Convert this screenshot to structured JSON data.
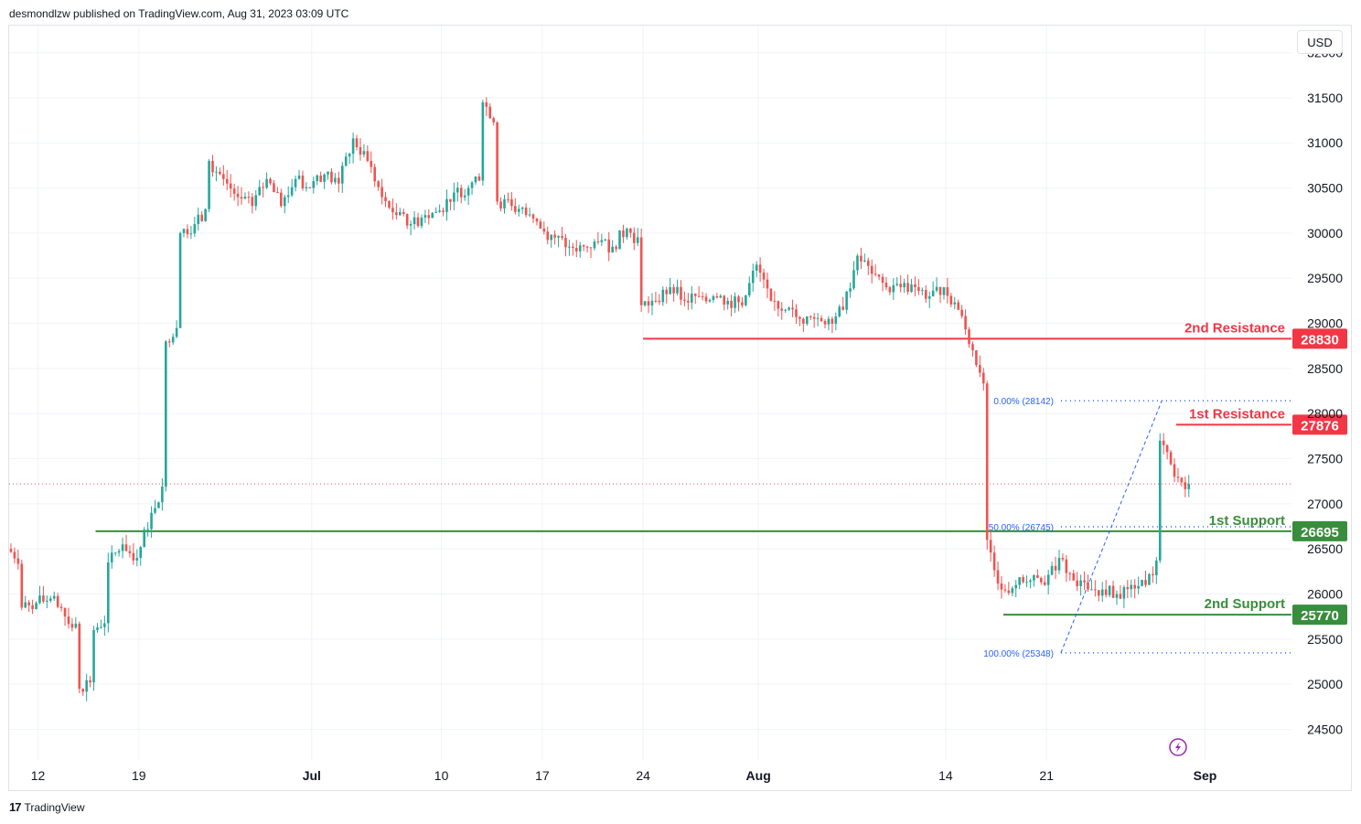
{
  "header": {
    "published": "desmondlzw published on TradingView.com, Aug 31, 2023 03:09 UTC"
  },
  "currency": "USD",
  "footer": {
    "brand": "TradingView"
  },
  "colors": {
    "up": "#26a69a",
    "down": "#ef5350",
    "resistance": "#f23645",
    "support": "#388e3c",
    "fib": "#2962ff",
    "grid": "#f0f3fa",
    "price_line": "#ef5350",
    "lightning": "#9c27b0"
  },
  "icons": {
    "lightning": "lightning-icon",
    "logo": "tradingview-logo-icon"
  },
  "chart_data": {
    "type": "candlestick",
    "title": "",
    "y_axis": {
      "ticks": [
        24500,
        25000,
        25500,
        26000,
        26500,
        27000,
        27500,
        28000,
        28500,
        29000,
        29500,
        30000,
        30500,
        31000,
        31500,
        32000
      ],
      "min": 24150,
      "max": 32300
    },
    "x_axis": {
      "labels": [
        {
          "label": "12",
          "date": "2023-06-12"
        },
        {
          "label": "19",
          "date": "2023-06-19"
        },
        {
          "label": "Jul",
          "date": "2023-07-01"
        },
        {
          "label": "10",
          "date": "2023-07-10"
        },
        {
          "label": "17",
          "date": "2023-07-17"
        },
        {
          "label": "24",
          "date": "2023-07-24"
        },
        {
          "label": "Aug",
          "date": "2023-08-01"
        },
        {
          "label": "14",
          "date": "2023-08-14"
        },
        {
          "label": "21",
          "date": "2023-08-21"
        },
        {
          "label": "Sep",
          "date": "2023-09-01"
        }
      ],
      "start": "2023-06-10",
      "end": "2023-09-07"
    },
    "last_price": 27220,
    "levels": [
      {
        "name": "2nd Resistance",
        "value": 28830,
        "kind": "resistance",
        "from": "2023-07-24"
      },
      {
        "name": "1st Resistance",
        "value": 27876,
        "kind": "resistance",
        "from": "2023-08-30"
      },
      {
        "name": "1st Support",
        "value": 26695,
        "kind": "support",
        "from": "2023-06-16"
      },
      {
        "name": "2nd Support",
        "value": 25770,
        "kind": "support",
        "from": "2023-08-18"
      }
    ],
    "fibonacci": [
      {
        "label": "0.00% (28142)",
        "value": 28142
      },
      {
        "label": "50.00% (26745)",
        "value": 26745
      },
      {
        "label": "100.00% (25348)",
        "value": 25348
      }
    ],
    "fib_trend": {
      "from_date": "2023-08-22",
      "from_value": 25348,
      "to_date": "2023-08-29",
      "to_value": 28142
    },
    "series": [
      {
        "date": "2023-06-10",
        "value": 26500
      },
      {
        "date": "2023-06-11",
        "value": 25850
      },
      {
        "date": "2023-06-12",
        "value": 25900
      },
      {
        "date": "2023-06-13",
        "value": 25950
      },
      {
        "date": "2023-06-14",
        "value": 25750
      },
      {
        "date": "2023-06-15",
        "value": 24950
      },
      {
        "date": "2023-06-16",
        "value": 25600
      },
      {
        "date": "2023-06-17",
        "value": 26350
      },
      {
        "date": "2023-06-18",
        "value": 26550
      },
      {
        "date": "2023-06-19",
        "value": 26400
      },
      {
        "date": "2023-06-20",
        "value": 26900
      },
      {
        "date": "2023-06-21",
        "value": 28800
      },
      {
        "date": "2023-06-22",
        "value": 30000
      },
      {
        "date": "2023-06-23",
        "value": 30100
      },
      {
        "date": "2023-06-24",
        "value": 30800
      },
      {
        "date": "2023-06-25",
        "value": 30600
      },
      {
        "date": "2023-06-26",
        "value": 30400
      },
      {
        "date": "2023-06-27",
        "value": 30300
      },
      {
        "date": "2023-06-28",
        "value": 30600
      },
      {
        "date": "2023-06-29",
        "value": 30300
      },
      {
        "date": "2023-06-30",
        "value": 30600
      },
      {
        "date": "2023-07-01",
        "value": 30500
      },
      {
        "date": "2023-07-02",
        "value": 30650
      },
      {
        "date": "2023-07-03",
        "value": 30550
      },
      {
        "date": "2023-07-04",
        "value": 31050
      },
      {
        "date": "2023-07-05",
        "value": 30800
      },
      {
        "date": "2023-07-06",
        "value": 30400
      },
      {
        "date": "2023-07-07",
        "value": 30200
      },
      {
        "date": "2023-07-08",
        "value": 30100
      },
      {
        "date": "2023-07-09",
        "value": 30200
      },
      {
        "date": "2023-07-10",
        "value": 30250
      },
      {
        "date": "2023-07-11",
        "value": 30450
      },
      {
        "date": "2023-07-12",
        "value": 30500
      },
      {
        "date": "2023-07-13",
        "value": 31450
      },
      {
        "date": "2023-07-14",
        "value": 30350
      },
      {
        "date": "2023-07-15",
        "value": 30300
      },
      {
        "date": "2023-07-16",
        "value": 30200
      },
      {
        "date": "2023-07-17",
        "value": 30050
      },
      {
        "date": "2023-07-18",
        "value": 29950
      },
      {
        "date": "2023-07-19",
        "value": 29850
      },
      {
        "date": "2023-07-20",
        "value": 29850
      },
      {
        "date": "2023-07-21",
        "value": 29900
      },
      {
        "date": "2023-07-22",
        "value": 29850
      },
      {
        "date": "2023-07-23",
        "value": 30050
      },
      {
        "date": "2023-07-24",
        "value": 29200
      },
      {
        "date": "2023-07-25",
        "value": 29250
      },
      {
        "date": "2023-07-26",
        "value": 29400
      },
      {
        "date": "2023-07-27",
        "value": 29250
      },
      {
        "date": "2023-07-28",
        "value": 29300
      },
      {
        "date": "2023-07-29",
        "value": 29300
      },
      {
        "date": "2023-07-30",
        "value": 29250
      },
      {
        "date": "2023-07-31",
        "value": 29200
      },
      {
        "date": "2023-08-01",
        "value": 29650
      },
      {
        "date": "2023-08-02",
        "value": 29250
      },
      {
        "date": "2023-08-03",
        "value": 29150
      },
      {
        "date": "2023-08-04",
        "value": 29050
      },
      {
        "date": "2023-08-05",
        "value": 29050
      },
      {
        "date": "2023-08-06",
        "value": 29050
      },
      {
        "date": "2023-08-07",
        "value": 29150
      },
      {
        "date": "2023-08-08",
        "value": 29750
      },
      {
        "date": "2023-08-09",
        "value": 29550
      },
      {
        "date": "2023-08-10",
        "value": 29400
      },
      {
        "date": "2023-08-11",
        "value": 29400
      },
      {
        "date": "2023-08-12",
        "value": 29400
      },
      {
        "date": "2023-08-13",
        "value": 29300
      },
      {
        "date": "2023-08-14",
        "value": 29400
      },
      {
        "date": "2023-08-15",
        "value": 29150
      },
      {
        "date": "2023-08-16",
        "value": 28700
      },
      {
        "date": "2023-08-17",
        "value": 26600
      },
      {
        "date": "2023-08-18",
        "value": 26050
      },
      {
        "date": "2023-08-19",
        "value": 26100
      },
      {
        "date": "2023-08-20",
        "value": 26150
      },
      {
        "date": "2023-08-21",
        "value": 26100
      },
      {
        "date": "2023-08-22",
        "value": 26400
      },
      {
        "date": "2023-08-23",
        "value": 26150
      },
      {
        "date": "2023-08-24",
        "value": 26050
      },
      {
        "date": "2023-08-25",
        "value": 26050
      },
      {
        "date": "2023-08-26",
        "value": 26000
      },
      {
        "date": "2023-08-27",
        "value": 26100
      },
      {
        "date": "2023-08-28",
        "value": 26100
      },
      {
        "date": "2023-08-29",
        "value": 27700
      },
      {
        "date": "2023-08-30",
        "value": 27300
      },
      {
        "date": "2023-08-31",
        "value": 27220
      }
    ]
  }
}
